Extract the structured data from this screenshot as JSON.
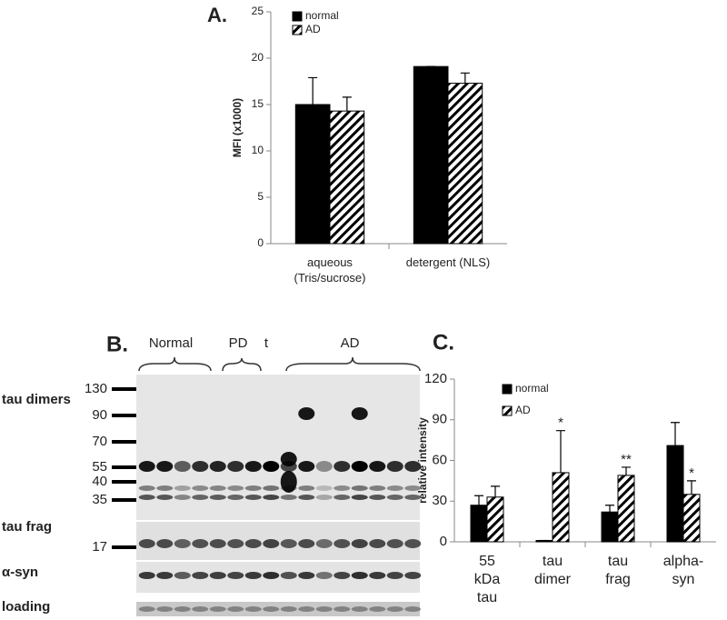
{
  "chart_data": [
    {
      "type": "bar",
      "title": "A.",
      "ylabel": "MFI (x1000)",
      "categories": [
        "aqueous\n(Tris/sucrose)",
        "detergent (NLS)"
      ],
      "series": [
        {
          "name": "normal",
          "color": "#000000",
          "pattern": "solid",
          "values": [
            15,
            19.1
          ],
          "errors": [
            2.9,
            0
          ]
        },
        {
          "name": "AD",
          "color": "#000000",
          "pattern": "hatch",
          "values": [
            14.3,
            17.3
          ],
          "errors": [
            1.5,
            1.1
          ]
        }
      ],
      "ylim": [
        0,
        25
      ],
      "yticks": [
        0,
        5,
        10,
        15,
        20,
        25
      ],
      "legend": "upper left"
    },
    {
      "type": "bar",
      "title": "C.",
      "ylabel": "relative intensity",
      "categories": [
        "55\nkDa\ntau",
        "tau\ndimer",
        "tau\nfrag",
        "alpha-\nsyn"
      ],
      "series": [
        {
          "name": "normal",
          "color": "#000000",
          "pattern": "solid",
          "values": [
            27,
            1,
            22,
            71
          ],
          "errors": [
            7,
            0,
            5,
            17
          ]
        },
        {
          "name": "AD",
          "color": "#000000",
          "pattern": "hatch",
          "values": [
            33,
            51,
            49,
            35
          ],
          "errors": [
            8,
            31,
            6,
            10
          ],
          "annotations": [
            null,
            "*",
            "**",
            "*"
          ]
        }
      ],
      "ylim": [
        0,
        120
      ],
      "yticks": [
        0,
        30,
        60,
        90,
        120
      ],
      "legend": "upper left"
    }
  ],
  "blot": {
    "label": "B.",
    "groups": [
      "Normal",
      "PD",
      "t",
      "AD"
    ],
    "rows": [
      "tau dimers",
      "tau frag",
      "α-syn",
      "loading"
    ],
    "markers": [
      130,
      90,
      70,
      55,
      40,
      35,
      17
    ]
  }
}
